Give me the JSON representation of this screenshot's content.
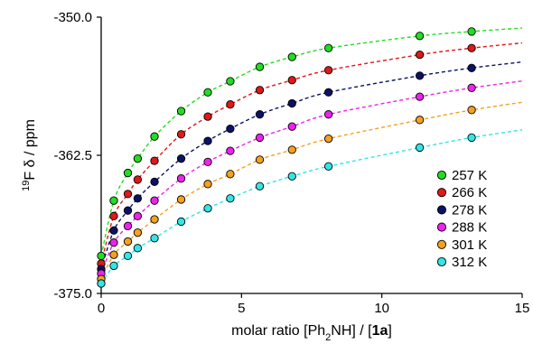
{
  "chart_data": {
    "type": "scatter",
    "title": "",
    "xlabel": {
      "prefix": "molar ratio [Ph",
      "sub": "2",
      "middle": "NH] / [",
      "bold": "1a",
      "suffix": "]"
    },
    "ylabel": {
      "sup": "19",
      "main": "F δ / ppm"
    },
    "xlim": [
      0,
      15
    ],
    "ylim": [
      -375.0,
      -350.0
    ],
    "x_ticks": [
      0,
      5,
      10,
      15
    ],
    "x_tick_labels": [
      "0",
      "5",
      "10",
      "15"
    ],
    "y_ticks": [
      -350.0,
      -362.5,
      -375.0
    ],
    "y_tick_labels": [
      "-350.0",
      "-362.5",
      "-375.0"
    ],
    "grid": false,
    "legend_position": "bottom-right",
    "x": [
      0,
      0.45,
      0.95,
      1.3,
      1.9,
      2.85,
      3.8,
      4.6,
      5.65,
      6.8,
      8.1,
      11.35,
      13.2
    ],
    "series": [
      {
        "name": "257 K",
        "color": "#22dd22",
        "values": [
          -371.6,
          -366.6,
          -364.1,
          -362.8,
          -360.8,
          -358.5,
          -356.8,
          -355.8,
          -354.5,
          -353.6,
          -352.8,
          -351.7,
          -351.3
        ]
      },
      {
        "name": "266 K",
        "color": "#e01818",
        "values": [
          -372.3,
          -368.0,
          -366.0,
          -364.7,
          -363.0,
          -360.6,
          -359.0,
          -357.9,
          -356.6,
          -355.7,
          -354.8,
          -353.4,
          -352.8
        ]
      },
      {
        "name": "278 K",
        "color": "#0a1266",
        "values": [
          -372.8,
          -369.3,
          -367.5,
          -366.4,
          -364.9,
          -362.8,
          -361.2,
          -360.1,
          -358.8,
          -357.8,
          -356.8,
          -355.3,
          -354.6
        ]
      },
      {
        "name": "288 K",
        "color": "#ee22ee",
        "values": [
          -373.2,
          -370.4,
          -368.9,
          -368.0,
          -366.6,
          -364.6,
          -363.1,
          -362.1,
          -360.9,
          -359.9,
          -358.8,
          -357.2,
          -356.4
        ]
      },
      {
        "name": "301 K",
        "color": "#f5a020",
        "values": [
          -373.7,
          -371.5,
          -370.3,
          -369.5,
          -368.3,
          -366.5,
          -365.1,
          -364.2,
          -362.9,
          -362.0,
          -361.0,
          -359.3,
          -358.4
        ]
      },
      {
        "name": "312 K",
        "color": "#33e5e5",
        "values": [
          -374.1,
          -372.5,
          -371.6,
          -370.9,
          -370.0,
          -368.5,
          -367.3,
          -366.4,
          -365.3,
          -364.4,
          -363.5,
          -361.8,
          -360.9
        ]
      }
    ],
    "annotations": []
  }
}
